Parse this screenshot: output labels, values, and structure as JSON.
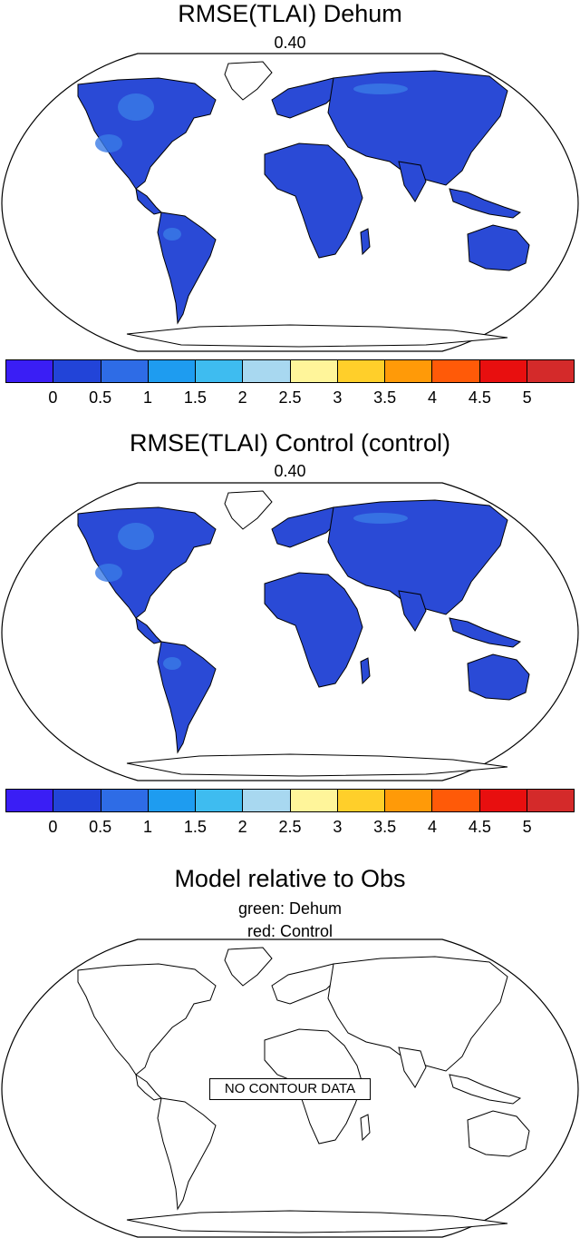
{
  "panels": [
    {
      "title": "RMSE(TLAI) Dehum",
      "subtitle": "0.40"
    },
    {
      "title": "RMSE(TLAI) Control (control)",
      "subtitle": "0.40"
    }
  ],
  "colorbar": {
    "colors": [
      "#3a1ef5",
      "#2244d8",
      "#2e6ce6",
      "#1e9cf0",
      "#3ebcf0",
      "#a8d8f0",
      "#fff59a",
      "#ffcf2a",
      "#ff9a08",
      "#ff5a08",
      "#e80f0f",
      "#d42a2a"
    ],
    "labels": [
      "0",
      "0.5",
      "1",
      "1.5",
      "2",
      "2.5",
      "3",
      "3.5",
      "4",
      "4.5",
      "5"
    ]
  },
  "panel3": {
    "title": "Model relative to Obs",
    "line1": "green: Dehum",
    "line2": "red: Control",
    "nodata": "NO CONTOUR DATA"
  },
  "land_color": "#2a4ad6",
  "land_light_color": "#3a7ae6"
}
